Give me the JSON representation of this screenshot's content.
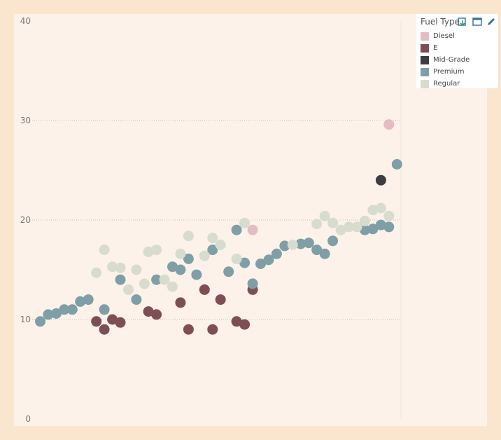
{
  "legend": {
    "title": "Fuel Type",
    "items": [
      {
        "label": "Diesel",
        "color": "#e5bcc1"
      },
      {
        "label": "E",
        "color": "#7d4f55"
      },
      {
        "label": "Mid-Grade",
        "color": "#3e3b41"
      },
      {
        "label": "Premium",
        "color": "#7e9fa5"
      },
      {
        "label": "Regular",
        "color": "#d7dccf"
      }
    ],
    "icons": [
      "export-icon",
      "maximize-icon",
      "edit-icon"
    ]
  },
  "chart_data": {
    "type": "scatter",
    "title": "",
    "xlabel": "",
    "ylabel": "",
    "ylim": [
      0,
      40
    ],
    "xlim": [
      0,
      46
    ],
    "y_ticks": [
      0,
      10,
      20,
      30,
      40
    ],
    "grid": "horizontal dotted",
    "legend_position": "top-right",
    "series": [
      {
        "name": "Diesel",
        "points": [
          [
            27.5,
            19
          ],
          [
            44.5,
            29.6
          ]
        ]
      },
      {
        "name": "E",
        "points": [
          [
            8,
            9.8
          ],
          [
            9,
            9
          ],
          [
            10,
            10
          ],
          [
            11,
            9.7
          ],
          [
            14.5,
            10.8
          ],
          [
            15.5,
            10.5
          ],
          [
            18.5,
            11.7
          ],
          [
            19.5,
            9
          ],
          [
            21.5,
            13
          ],
          [
            22.5,
            9
          ],
          [
            23.5,
            12
          ],
          [
            25.5,
            9.8
          ],
          [
            26.5,
            9.5
          ],
          [
            27.5,
            13
          ]
        ]
      },
      {
        "name": "Mid-Grade",
        "points": [
          [
            43.5,
            24
          ]
        ]
      },
      {
        "name": "Premium",
        "points": [
          [
            1,
            9.8
          ],
          [
            2,
            10.5
          ],
          [
            3,
            10.6
          ],
          [
            4,
            11
          ],
          [
            5,
            11
          ],
          [
            6,
            11.8
          ],
          [
            7,
            12
          ],
          [
            9,
            11
          ],
          [
            11,
            14
          ],
          [
            13,
            12
          ],
          [
            15.5,
            14
          ],
          [
            17.5,
            15.3
          ],
          [
            18.5,
            15
          ],
          [
            19.5,
            16.1
          ],
          [
            20.5,
            14.5
          ],
          [
            22.5,
            17
          ],
          [
            24.5,
            14.8
          ],
          [
            25.5,
            19
          ],
          [
            26.5,
            15.7
          ],
          [
            27.5,
            13.6
          ],
          [
            28.5,
            15.6
          ],
          [
            29.5,
            16
          ],
          [
            30.5,
            16.6
          ],
          [
            31.5,
            17.4
          ],
          [
            33.5,
            17.6
          ],
          [
            34.5,
            17.7
          ],
          [
            35.5,
            17
          ],
          [
            36.5,
            16.6
          ],
          [
            37.5,
            17.9
          ],
          [
            41.5,
            19
          ],
          [
            42.5,
            19.1
          ],
          [
            43.5,
            19.5
          ],
          [
            44.5,
            19.3
          ],
          [
            45.5,
            25.6
          ]
        ]
      },
      {
        "name": "Regular",
        "points": [
          [
            8,
            14.7
          ],
          [
            9,
            17
          ],
          [
            10,
            15.3
          ],
          [
            11,
            15.2
          ],
          [
            12,
            13
          ],
          [
            13,
            15
          ],
          [
            14,
            13.6
          ],
          [
            14.5,
            16.8
          ],
          [
            15.5,
            17
          ],
          [
            16.5,
            14
          ],
          [
            17.5,
            13.3
          ],
          [
            18.5,
            16.6
          ],
          [
            19.5,
            18.4
          ],
          [
            21.5,
            16.4
          ],
          [
            22.5,
            18.2
          ],
          [
            23.5,
            17.5
          ],
          [
            25.5,
            16.1
          ],
          [
            26.5,
            19.7
          ],
          [
            32.5,
            17.5
          ],
          [
            35.5,
            19.6
          ],
          [
            36.5,
            20.4
          ],
          [
            37.5,
            19.7
          ],
          [
            38.5,
            19
          ],
          [
            39.5,
            19.3
          ],
          [
            40.5,
            19.3
          ],
          [
            41.5,
            19.9
          ],
          [
            42.5,
            21
          ],
          [
            43.5,
            21.2
          ],
          [
            44.5,
            20.4
          ]
        ]
      }
    ]
  }
}
